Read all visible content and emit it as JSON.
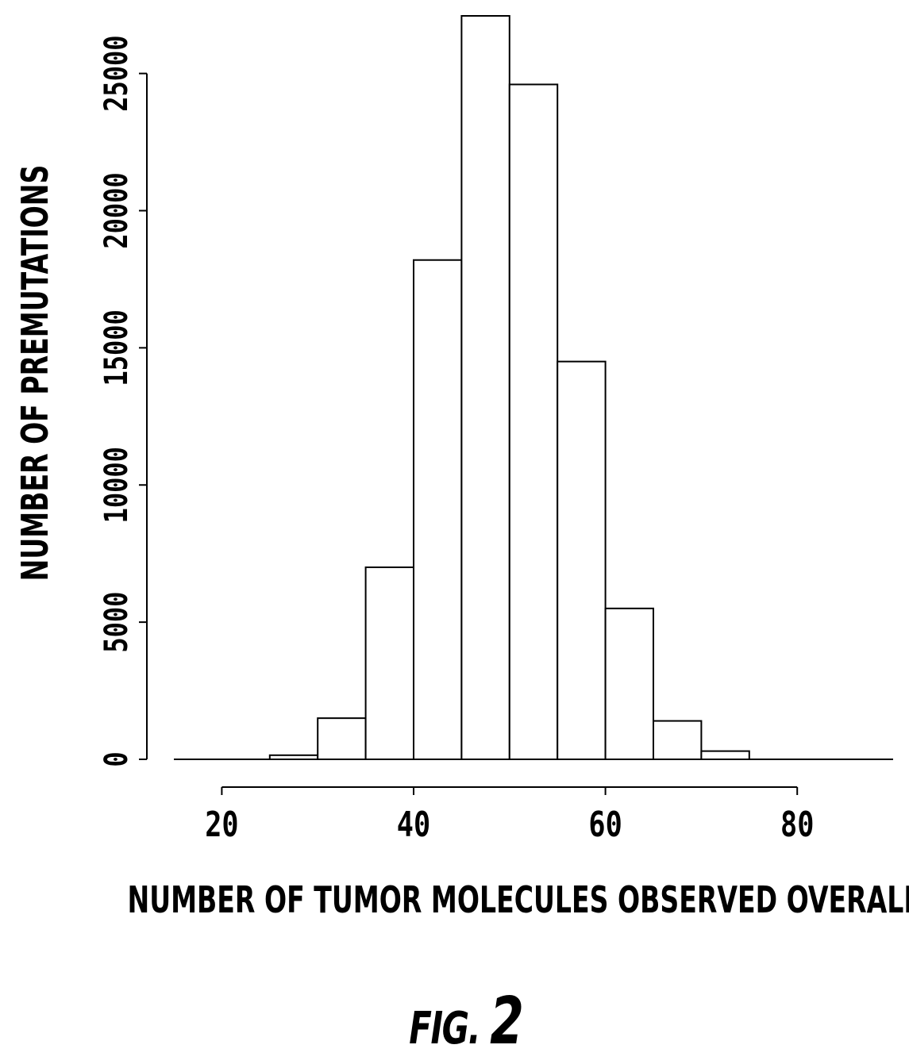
{
  "chart_data": {
    "type": "bar",
    "title": "",
    "xlabel": "NUMBER OF TUMOR MOLECULES OBSERVED OVERALL",
    "ylabel": "NUMBER OF PREMUTATIONS",
    "bin_edges": [
      25,
      30,
      35,
      40,
      45,
      50,
      55,
      60,
      65,
      70,
      75
    ],
    "values": [
      150,
      1500,
      7000,
      18200,
      27100,
      24600,
      14500,
      5500,
      1400,
      300
    ],
    "xlim": [
      15,
      90
    ],
    "ylim": [
      0,
      27100
    ],
    "xticks": [
      20,
      40,
      60,
      80
    ],
    "xtick_labels": [
      "20",
      "40",
      "60",
      "80"
    ],
    "yticks": [
      0,
      5000,
      10000,
      15000,
      20000,
      25000
    ],
    "ytick_labels": [
      "0",
      "5000",
      "10000",
      "15000",
      "20000",
      "25000"
    ],
    "grid": false,
    "legend": "none"
  },
  "figure": {
    "label_prefix": "FIG.",
    "label_number": "2"
  }
}
